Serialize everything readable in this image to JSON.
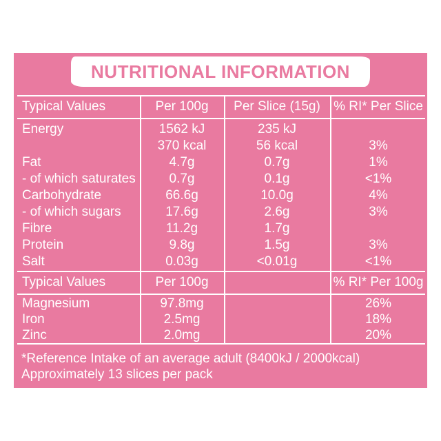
{
  "title": "NUTRITIONAL INFORMATION",
  "colors": {
    "panel": "#e97aa0",
    "text": "#ffffff",
    "title_text": "#e97aa0"
  },
  "table1": {
    "headers": [
      "Typical Values",
      "Per 100g",
      "Per Slice (15g)",
      "% RI* Per Slice"
    ],
    "rows": [
      {
        "label": "Energy",
        "per100": "1562 kJ",
        "perslice": "235 kJ",
        "ri": ""
      },
      {
        "label": "",
        "per100": "370 kcal",
        "perslice": "56 kcal",
        "ri": "3%"
      },
      {
        "label": "Fat",
        "per100": "4.7g",
        "perslice": "0.7g",
        "ri": "1%"
      },
      {
        "label": "- of which saturates",
        "per100": "0.7g",
        "perslice": "0.1g",
        "ri": "<1%"
      },
      {
        "label": "Carbohydrate",
        "per100": "66.6g",
        "perslice": "10.0g",
        "ri": "4%"
      },
      {
        "label": "- of which sugars",
        "per100": "17.6g",
        "perslice": "2.6g",
        "ri": "3%"
      },
      {
        "label": "Fibre",
        "per100": "11.2g",
        "perslice": "1.7g",
        "ri": ""
      },
      {
        "label": "Protein",
        "per100": "9.8g",
        "perslice": "1.5g",
        "ri": "3%"
      },
      {
        "label": "Salt",
        "per100": "0.03g",
        "perslice": "<0.01g",
        "ri": "<1%"
      }
    ]
  },
  "table2": {
    "headers": [
      "Typical Values",
      "Per 100g",
      "",
      "% RI* Per 100g"
    ],
    "rows": [
      {
        "label": "Magnesium",
        "per100": "97.8mg",
        "ri": "26%"
      },
      {
        "label": "Iron",
        "per100": "2.5mg",
        "ri": "18%"
      },
      {
        "label": "Zinc",
        "per100": "2.0mg",
        "ri": "20%"
      }
    ]
  },
  "footnotes": [
    "*Reference Intake of an average adult (8400kJ / 2000kcal)",
    "Approximately 13 slices per pack"
  ]
}
